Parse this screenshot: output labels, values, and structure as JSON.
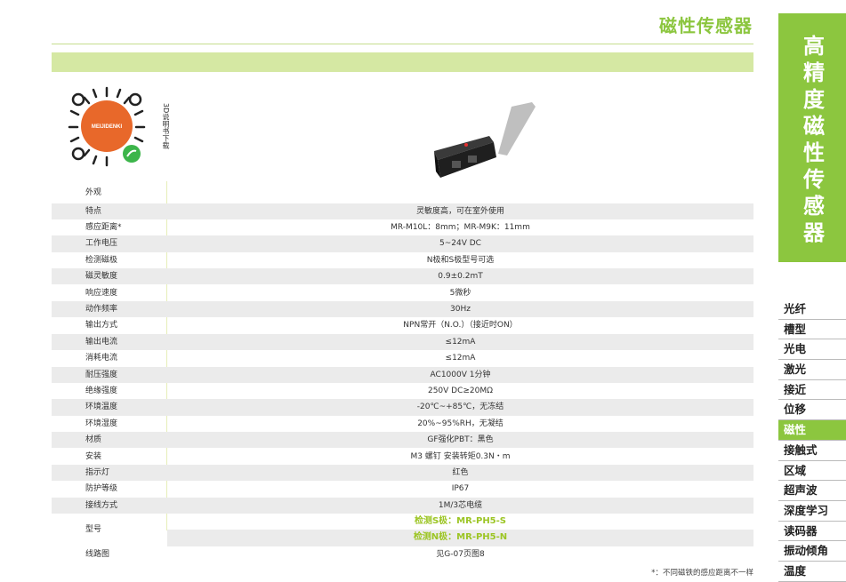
{
  "header": {
    "title": "磁性传感器"
  },
  "qr": {
    "label": "3D说明书下载",
    "brand": "MEIJIDENKI"
  },
  "sidebar": {
    "title_chars": [
      "高",
      "精",
      "度",
      "磁",
      "性",
      "传",
      "感",
      "器"
    ],
    "items": [
      {
        "label": "光纤"
      },
      {
        "label": "槽型"
      },
      {
        "label": "光电"
      },
      {
        "label": "激光"
      },
      {
        "label": "接近"
      },
      {
        "label": "位移"
      },
      {
        "label": "磁性",
        "active": true
      },
      {
        "label": "接触式"
      },
      {
        "label": "区域"
      },
      {
        "label": "超声波"
      },
      {
        "label": "深度学习"
      },
      {
        "label": "读码器"
      },
      {
        "label": "振动倾角"
      },
      {
        "label": "温度"
      }
    ]
  },
  "accent_color": "#8cc63f",
  "specs": {
    "appearance_label": "外观",
    "rows": [
      {
        "k": "特点",
        "v": "灵敏度高，可在室外使用"
      },
      {
        "k": "感应距离*",
        "v": "MR-M10L：8mm；MR-M9K：11mm"
      },
      {
        "k": "工作电压",
        "v": "5~24V DC"
      },
      {
        "k": "检测磁极",
        "v": "N极和S极型号可选"
      },
      {
        "k": "磁灵敏度",
        "v": "0.9±0.2mT"
      },
      {
        "k": "响应速度",
        "v": "5微秒"
      },
      {
        "k": "动作频率",
        "v": "30Hz"
      },
      {
        "k": "输出方式",
        "v": "NPN常开（N.O.）（接近时ON）"
      },
      {
        "k": "输出电流",
        "v": "≤12mA"
      },
      {
        "k": "消耗电流",
        "v": "≤12mA"
      },
      {
        "k": "耐压强度",
        "v": "AC1000V 1分钟"
      },
      {
        "k": "绝缘强度",
        "v": "250V DC≥20MΩ"
      },
      {
        "k": "环境温度",
        "v": "-20℃~+85℃，无冻结"
      },
      {
        "k": "环境湿度",
        "v": "20%~95%RH，无凝结"
      },
      {
        "k": "材质",
        "v": "GF强化PBT：黑色"
      },
      {
        "k": "安装",
        "v": "M3 螺钉 安装转矩0.3N・m"
      },
      {
        "k": "指示灯",
        "v": "红色"
      },
      {
        "k": "防护等级",
        "v": "IP67"
      },
      {
        "k": "接线方式",
        "v": "1M/3芯电缆"
      }
    ],
    "model_label": "型号",
    "model_s": "检测S极：MR-PH5-S",
    "model_n": "检测N极：MR-PH5-N",
    "wiring_label": "线路图",
    "wiring_value": "见G-07页图8"
  },
  "footnote": "*：不同磁铁的感应距离不一样"
}
